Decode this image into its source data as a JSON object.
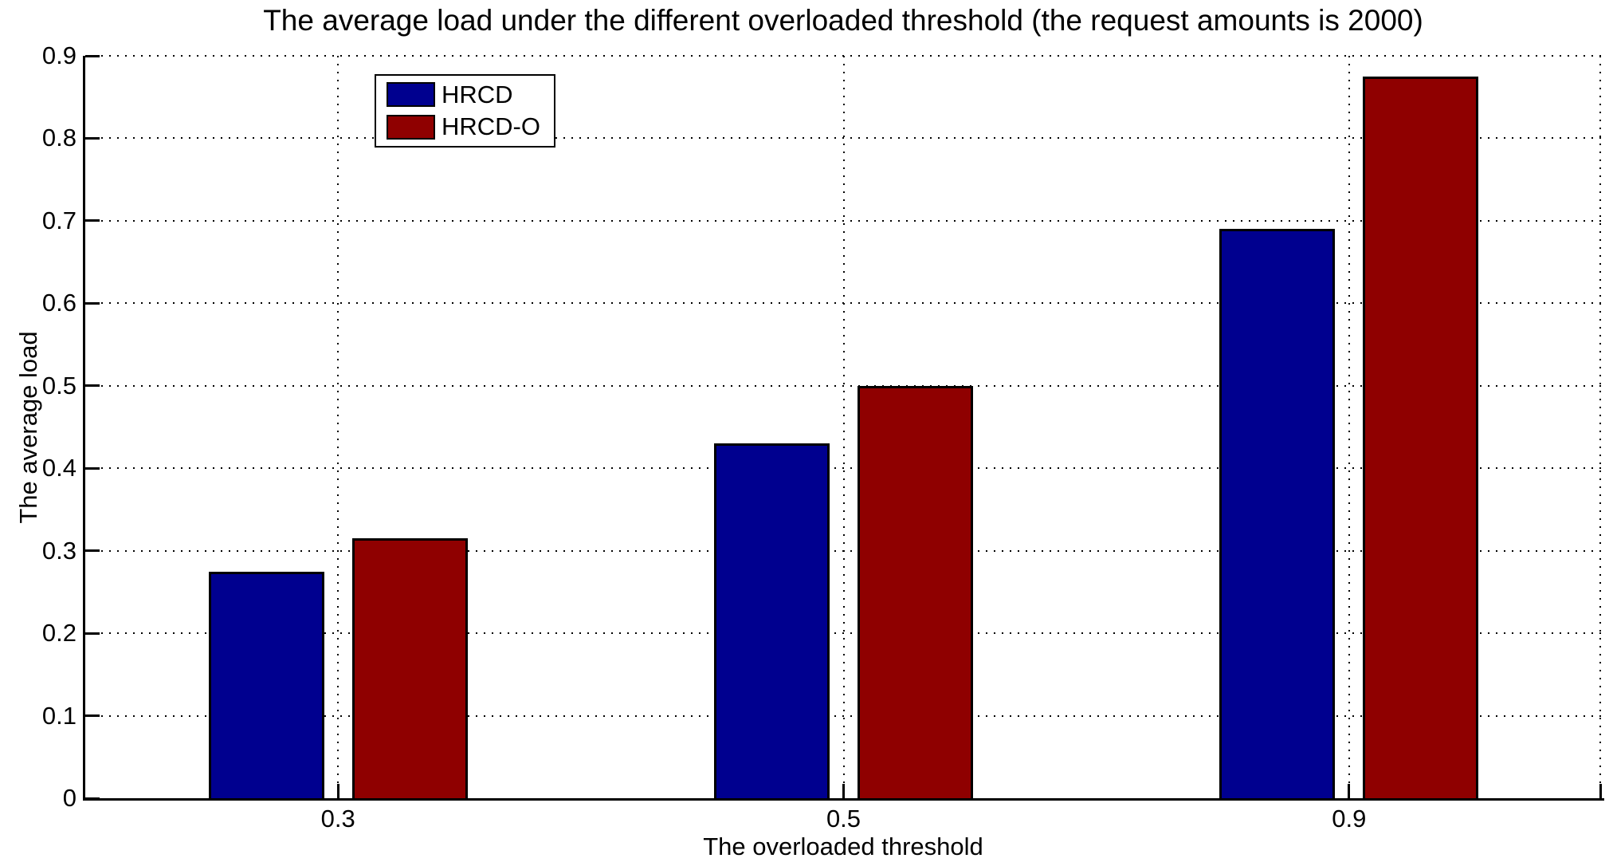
{
  "chart_data": {
    "type": "bar",
    "title": "The average load under the different overloaded threshold (the request amounts is 2000)",
    "xlabel": "The overloaded threshold",
    "ylabel": "The average load",
    "categories": [
      "0.3",
      "0.5",
      "0.9"
    ],
    "series": [
      {
        "name": "HRCD",
        "color": "#00008F",
        "values": [
          0.275,
          0.43,
          0.69
        ]
      },
      {
        "name": "HRCD-O",
        "color": "#8F0000",
        "values": [
          0.315,
          0.5,
          0.875
        ]
      }
    ],
    "ylim": [
      0,
      0.9
    ],
    "yticks": [
      0,
      0.1,
      0.2,
      0.3,
      0.4,
      0.5,
      0.6,
      0.7,
      0.8,
      0.9
    ],
    "grid": "dotted",
    "bar_edge_color": "#000000",
    "legend_position": "top-left-inside"
  },
  "legend": {
    "items": [
      {
        "label": "HRCD",
        "color": "#00008F"
      },
      {
        "label": "HRCD-O",
        "color": "#8F0000"
      }
    ]
  }
}
